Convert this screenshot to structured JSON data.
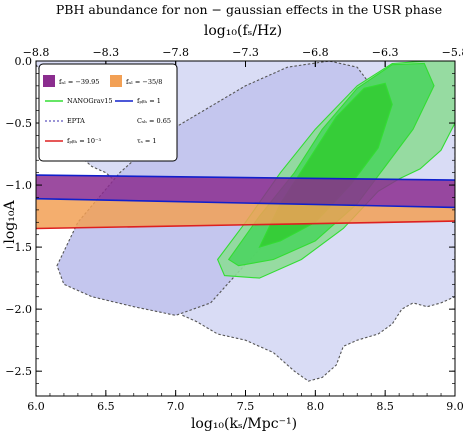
{
  "chart_data": {
    "type": "area",
    "title": "PBH abundance for non − gaussian effects in the USR phase",
    "top_axis_label": "log₁₀(fₛ/Hz)",
    "xlabel": "log₁₀(kₛ/Mpc⁻¹)",
    "ylabel": "log₁₀A",
    "xlim": [
      6.0,
      9.0
    ],
    "ylim": [
      -2.7,
      0.0
    ],
    "x_ticks": [
      6.0,
      6.5,
      7.0,
      7.5,
      8.0,
      8.5,
      9.0
    ],
    "x_tick_labels": [
      "6.0",
      "6.5",
      "7.0",
      "7.5",
      "8.0",
      "8.5",
      "9.0"
    ],
    "y_ticks": [
      0.0,
      -0.5,
      -1.0,
      -1.5,
      -2.0,
      -2.5
    ],
    "y_tick_labels": [
      "0.0",
      "−0.5",
      "−1.0",
      "−1.5",
      "−2.0",
      "−2.5"
    ],
    "top_ticks": [
      -8.8,
      -8.3,
      -7.8,
      -7.3,
      -6.8,
      -6.3,
      -5.8
    ],
    "top_tick_labels": [
      "−8.8",
      "−8.3",
      "−7.8",
      "−7.3",
      "−6.8",
      "−6.3",
      "−5.8"
    ],
    "legend_position": "top-left",
    "grid": false,
    "legend": {
      "swatches": [
        {
          "label": "fₙₗ = −39.95",
          "color": "#8b2d8f"
        },
        {
          "label": "fₙₗ = −35/8",
          "color": "#f2a055"
        }
      ],
      "lines": [
        {
          "label": "NANOGrav15",
          "color": "#33dd33",
          "style": "solid"
        },
        {
          "label": "fₚᵦₕ = 1",
          "color": "#1020cc",
          "style": "solid"
        },
        {
          "label": "EPTA",
          "color": "#7a72c8",
          "style": "dashed"
        },
        {
          "label": "Cₛₕ = 0.65",
          "color": "#000000",
          "style": "none"
        },
        {
          "label": "fₚᵦₕ = 10⁻³",
          "color": "#dd2020",
          "style": "solid"
        },
        {
          "label": "τₛ = 1",
          "color": "#000000",
          "style": "none"
        }
      ]
    },
    "series": [
      {
        "name": "fₙₗ = −39.95",
        "kind": "band",
        "color": "#8b2d8f",
        "lower": [
          [
            6.0,
            -1.11
          ],
          [
            9.0,
            -1.18
          ]
        ],
        "upper": [
          [
            6.0,
            -0.92
          ],
          [
            9.0,
            -0.96
          ]
        ]
      },
      {
        "name": "fₙₗ = −35/8",
        "kind": "band",
        "color": "#f2a055",
        "lower": [
          [
            6.0,
            -1.35
          ],
          [
            9.0,
            -1.29
          ]
        ],
        "upper": [
          [
            6.0,
            -1.11
          ],
          [
            9.0,
            -1.18
          ]
        ]
      },
      {
        "name": "fₚᵦₕ = 1",
        "kind": "line",
        "color": "#1020cc",
        "points": [
          [
            6.0,
            -0.92
          ],
          [
            9.0,
            -0.96
          ]
        ]
      },
      {
        "name": "fₚᵦₕ = 1",
        "kind": "line",
        "color": "#1020cc",
        "points": [
          [
            6.0,
            -1.11
          ],
          [
            9.0,
            -1.18
          ]
        ]
      },
      {
        "name": "fₚᵦₕ = 10⁻³",
        "kind": "line",
        "color": "#dd2020",
        "points": [
          [
            6.0,
            -1.35
          ],
          [
            9.0,
            -1.29
          ]
        ]
      }
    ],
    "regions": [
      {
        "name": "EPTA",
        "level": "outer",
        "fill": "#d9dcf5",
        "stroke": "#555555",
        "dash": true,
        "points": [
          [
            6.0,
            -0.03
          ],
          [
            6.1,
            -0.2
          ],
          [
            6.2,
            -0.55
          ],
          [
            6.3,
            -0.75
          ],
          [
            6.4,
            -0.85
          ],
          [
            6.5,
            -0.9
          ],
          [
            6.6,
            -1.0
          ],
          [
            6.8,
            -1.15
          ],
          [
            6.95,
            -1.45
          ],
          [
            7.0,
            -1.7
          ],
          [
            6.98,
            -1.9
          ],
          [
            7.05,
            -2.05
          ],
          [
            7.15,
            -2.1
          ],
          [
            7.3,
            -2.2
          ],
          [
            7.5,
            -2.25
          ],
          [
            7.7,
            -2.35
          ],
          [
            7.85,
            -2.5
          ],
          [
            7.95,
            -2.58
          ],
          [
            8.05,
            -2.55
          ],
          [
            8.15,
            -2.45
          ],
          [
            8.2,
            -2.3
          ],
          [
            8.3,
            -2.25
          ],
          [
            8.45,
            -2.2
          ],
          [
            8.55,
            -2.12
          ],
          [
            8.62,
            -2.0
          ],
          [
            8.7,
            -1.95
          ],
          [
            8.8,
            -1.98
          ],
          [
            8.9,
            -1.95
          ],
          [
            9.0,
            -1.9
          ],
          [
            9.0,
            0.0
          ],
          [
            6.0,
            0.0
          ]
        ]
      },
      {
        "name": "EPTA",
        "level": "inner",
        "fill": "#c4c6ee",
        "stroke": "#555555",
        "dash": true,
        "points": [
          [
            6.15,
            -1.65
          ],
          [
            6.3,
            -1.3
          ],
          [
            6.6,
            -0.9
          ],
          [
            6.9,
            -0.6
          ],
          [
            7.2,
            -0.4
          ],
          [
            7.5,
            -0.2
          ],
          [
            7.8,
            -0.05
          ],
          [
            8.1,
            0.0
          ],
          [
            8.3,
            -0.05
          ],
          [
            8.4,
            -0.2
          ],
          [
            8.35,
            -0.5
          ],
          [
            8.2,
            -0.8
          ],
          [
            7.95,
            -1.1
          ],
          [
            7.7,
            -1.4
          ],
          [
            7.45,
            -1.7
          ],
          [
            7.25,
            -1.95
          ],
          [
            7.0,
            -2.05
          ],
          [
            6.7,
            -1.98
          ],
          [
            6.4,
            -1.9
          ],
          [
            6.2,
            -1.8
          ]
        ]
      },
      {
        "name": "NANOGrav15",
        "level": "outer",
        "fill": "#8eda98",
        "stroke": "#33dd33",
        "dash": false,
        "points": [
          [
            7.3,
            -1.6
          ],
          [
            7.5,
            -1.3
          ],
          [
            7.75,
            -0.9
          ],
          [
            8.0,
            -0.55
          ],
          [
            8.3,
            -0.2
          ],
          [
            8.55,
            -0.02
          ],
          [
            8.8,
            0.0
          ],
          [
            9.0,
            0.0
          ],
          [
            9.0,
            -0.5
          ],
          [
            8.9,
            -0.72
          ],
          [
            8.75,
            -0.87
          ],
          [
            8.6,
            -0.95
          ],
          [
            8.45,
            -1.05
          ],
          [
            8.2,
            -1.35
          ],
          [
            7.9,
            -1.6
          ],
          [
            7.6,
            -1.75
          ],
          [
            7.35,
            -1.73
          ]
        ]
      },
      {
        "name": "NANOGrav15",
        "level": "mid",
        "fill": "#4cd460",
        "stroke": "#33dd33",
        "dash": false,
        "points": [
          [
            7.38,
            -1.6
          ],
          [
            7.6,
            -1.25
          ],
          [
            7.85,
            -0.9
          ],
          [
            8.05,
            -0.55
          ],
          [
            8.3,
            -0.22
          ],
          [
            8.55,
            -0.03
          ],
          [
            8.78,
            -0.02
          ],
          [
            8.85,
            -0.2
          ],
          [
            8.7,
            -0.55
          ],
          [
            8.5,
            -0.85
          ],
          [
            8.3,
            -1.15
          ],
          [
            8.0,
            -1.45
          ],
          [
            7.7,
            -1.6
          ],
          [
            7.45,
            -1.65
          ]
        ]
      },
      {
        "name": "NANOGrav15",
        "level": "inner",
        "fill": "#33cc33",
        "stroke": "#33dd33",
        "dash": false,
        "points": [
          [
            7.6,
            -1.5
          ],
          [
            7.75,
            -1.15
          ],
          [
            7.95,
            -0.8
          ],
          [
            8.15,
            -0.45
          ],
          [
            8.35,
            -0.22
          ],
          [
            8.5,
            -0.18
          ],
          [
            8.55,
            -0.35
          ],
          [
            8.45,
            -0.7
          ],
          [
            8.25,
            -1.0
          ],
          [
            8.0,
            -1.3
          ],
          [
            7.75,
            -1.45
          ]
        ]
      }
    ]
  }
}
